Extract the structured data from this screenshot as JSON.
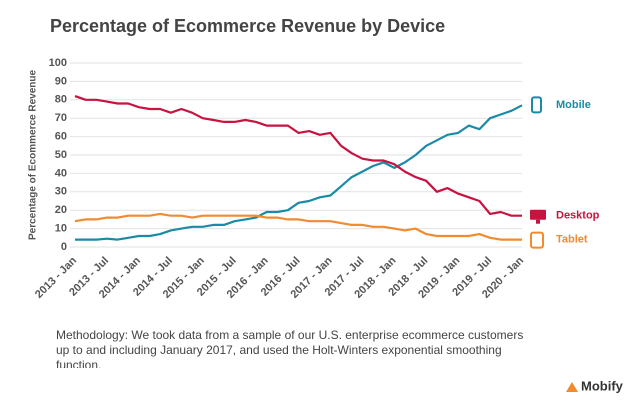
{
  "chart_data": {
    "type": "line",
    "title": "Percentage of Ecommerce Revenue by Device",
    "y_label": "Percentage of Ecommerce Revenue",
    "note": "Methodology: We took data from a sample of our U.S. enterprise ecommerce customers up to and including January 2017, and used the Holt-Winters exponential smoothing function.",
    "brand": "Mobify",
    "categories": [
      "2013 - Jan",
      null,
      null,
      "2013 - Jul",
      null,
      null,
      "2014 - Jan",
      null,
      null,
      "2014 - Jul",
      null,
      null,
      "2015 - Jan",
      null,
      null,
      "2015 - Jul",
      null,
      null,
      "2016 - Jan",
      null,
      null,
      "2016 - Jul",
      null,
      null,
      "2017 - Jan",
      null,
      null,
      "2017 - Jul",
      null,
      null,
      "2018 - Jan",
      null,
      null,
      "2018 - Jul",
      null,
      null,
      "2019 - Jan",
      null,
      null,
      "2019 - Jul",
      null,
      null,
      "2020 - Jan"
    ],
    "series": [
      {
        "name": "Mobile",
        "color": "#1a8aa6",
        "values": [
          4,
          4,
          4,
          4.5,
          4,
          5,
          6,
          6,
          7,
          9,
          10,
          11,
          11,
          12,
          12,
          14,
          15,
          16,
          19,
          19,
          20,
          24,
          25,
          27,
          28,
          33,
          38,
          41,
          44,
          46,
          43,
          46,
          50,
          55,
          58,
          61,
          62,
          66,
          64,
          70,
          72,
          74,
          77
        ]
      },
      {
        "name": "Desktop",
        "color": "#c8123f",
        "values": [
          82,
          80,
          80,
          79,
          78,
          78,
          76,
          75,
          75,
          73,
          75,
          73,
          70,
          69,
          68,
          68,
          69,
          68,
          66,
          66,
          66,
          62,
          63,
          61,
          62,
          55,
          51,
          48,
          47,
          47,
          45,
          41,
          38,
          36,
          30,
          32,
          29,
          27,
          25,
          18,
          19,
          17,
          17
        ]
      },
      {
        "name": "Tablet",
        "color": "#f28a2e",
        "values": [
          14,
          15,
          15,
          16,
          16,
          17,
          17,
          17,
          18,
          17,
          17,
          16,
          17,
          17,
          17,
          17,
          17,
          17,
          16,
          16,
          15,
          15,
          14,
          14,
          14,
          13,
          12,
          12,
          11,
          11,
          10,
          9,
          10,
          7,
          6,
          6,
          6,
          6,
          7,
          5,
          4,
          4,
          4
        ]
      }
    ],
    "ylim": [
      0,
      100
    ],
    "yticks": [
      0,
      10,
      20,
      30,
      40,
      50,
      60,
      70,
      80,
      90,
      100
    ],
    "grid": true
  }
}
